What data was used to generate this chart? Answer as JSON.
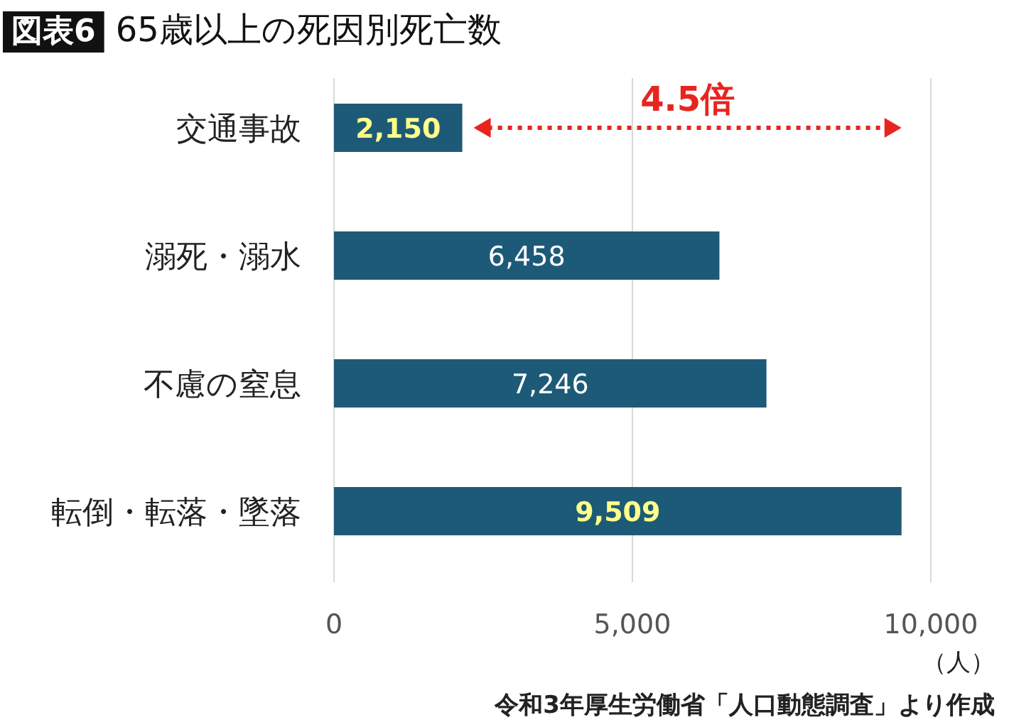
{
  "chart_data": {
    "type": "bar",
    "orientation": "horizontal",
    "title": "図表6",
    "subtitle": "65歳以上の死因別死亡数",
    "categories": [
      "交通事故",
      "溺死・溺水",
      "不慮の窒息",
      "転倒・転落・墜落"
    ],
    "values": [
      2150,
      6458,
      7246,
      9509
    ],
    "value_labels": [
      "2,150",
      "6,458",
      "7,246",
      "9,509"
    ],
    "color": "#1d5a78",
    "xlim": [
      0,
      10000
    ],
    "xticks": [
      0,
      {
        "value": 5000,
        "label": "5,000"
      },
      {
        "value": 10000,
        "label": "10,000"
      }
    ],
    "grid": "x",
    "annotations": [
      "4.5倍",
      "（人）",
      "令和3年厚生労働省「人口動態調査」より作成"
    ]
  }
}
